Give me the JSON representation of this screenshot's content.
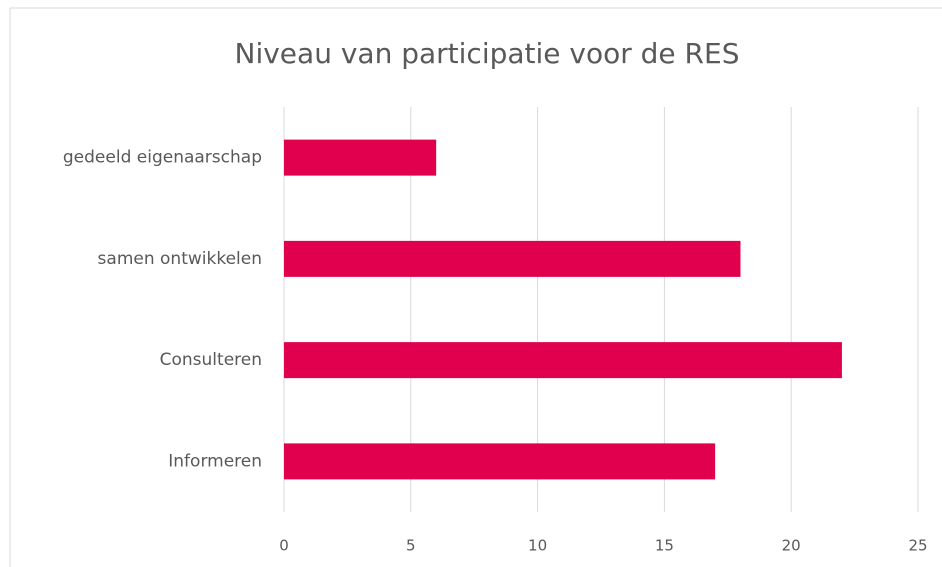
{
  "chart_data": {
    "type": "bar",
    "orientation": "horizontal",
    "title": "Niveau van participatie voor de RES",
    "categories": [
      "gedeeld eigenaarschap",
      "samen ontwikkelen",
      "Consulteren",
      "Informeren"
    ],
    "values": [
      6,
      18,
      22,
      17
    ],
    "color": "#e0004d",
    "xlim": [
      0,
      25
    ],
    "xticks": [
      0,
      5,
      10,
      15,
      20,
      25
    ],
    "grid": true
  }
}
